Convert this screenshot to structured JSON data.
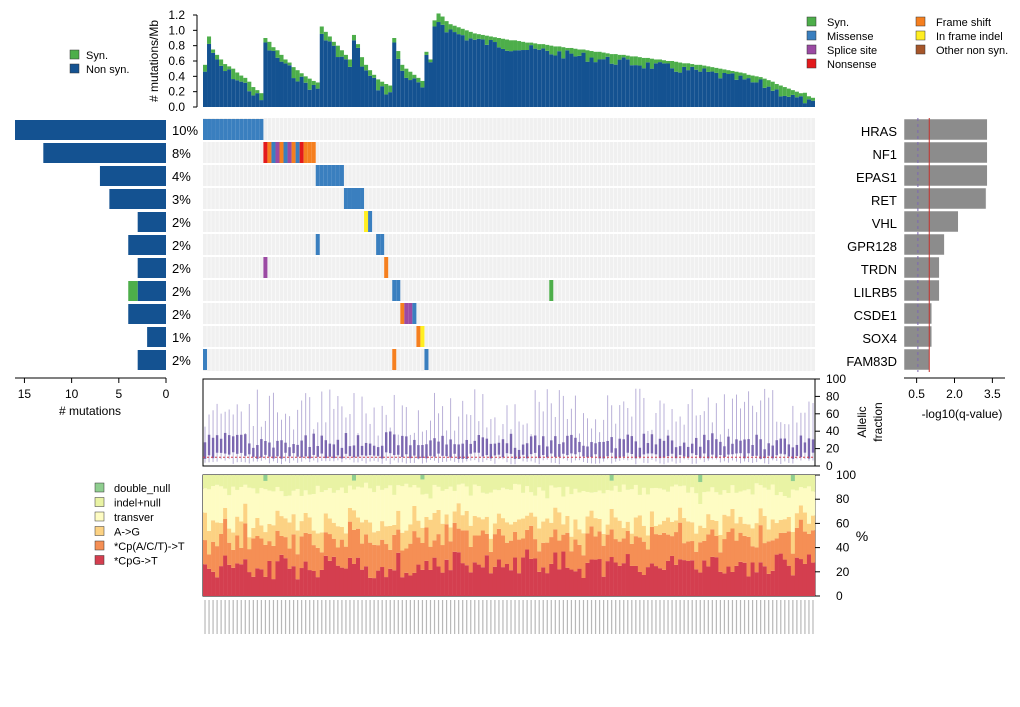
{
  "colors": {
    "syn": "#4dae4a",
    "non_syn": "#145291",
    "missense": "#3a7fbf",
    "splice_site": "#9b4aa3",
    "nonsense": "#e31a1c",
    "frame_shift": "#f57f1f",
    "in_frame_indel": "#ffee22",
    "other_non_syn": "#a6562a",
    "background_cell": "#f0f0f0",
    "qvalue_bar": "#8c8c8c",
    "allelic_line": "#7b67b0",
    "double_null": "#8fce8f",
    "indel_null": "#e9f3a4",
    "transver": "#fefcc3",
    "a_to_g": "#fcd283",
    "cpacg_t": "#f58f55",
    "cpg_t": "#d43e4f"
  },
  "chart_data": [
    {
      "id": "mutation-rate",
      "type": "bar",
      "ylabel": "# mutations/Mb",
      "ylim": [
        0,
        1.2
      ],
      "yticks": [
        "0.0",
        "0.2",
        "0.4",
        "0.6",
        "0.8",
        "1.0",
        "1.2"
      ],
      "samples": 152,
      "series": [
        {
          "name": "Syn.",
          "note": "green top segment per sample, ~0.03-0.15"
        },
        {
          "name": "Non syn.",
          "note": "blue lower segment per sample, ~0.1-1.0"
        }
      ],
      "total_profile": [
        0.55,
        0.92,
        0.75,
        0.68,
        0.62,
        0.56,
        0.53,
        0.5,
        0.45,
        0.41,
        0.38,
        0.33,
        0.26,
        0.22,
        0.18,
        0.9,
        0.85,
        0.78,
        0.74,
        0.68,
        0.62,
        0.58,
        0.52,
        0.48,
        0.44,
        0.4,
        0.37,
        0.34,
        0.32,
        1.05,
        0.98,
        0.92,
        0.85,
        0.8,
        0.74,
        0.68,
        0.62,
        0.94,
        0.82,
        0.65,
        0.55,
        0.48,
        0.42,
        0.36,
        0.33,
        0.3,
        0.28,
        0.9,
        0.73,
        0.55,
        0.5,
        0.46,
        0.42,
        0.38,
        0.34,
        0.72,
        0.62,
        1.13,
        1.22,
        1.18,
        1.12,
        1.08,
        1.06,
        1.04,
        1.02,
        1.0,
        0.98,
        0.96,
        0.95,
        0.94,
        0.93,
        0.92,
        0.91,
        0.9,
        0.89,
        0.88,
        0.87,
        0.87,
        0.86,
        0.85,
        0.84,
        0.84,
        0.83,
        0.82,
        0.82,
        0.81,
        0.8,
        0.79,
        0.79,
        0.78,
        0.77,
        0.77,
        0.76,
        0.75,
        0.75,
        0.74,
        0.73,
        0.72,
        0.72,
        0.71,
        0.7,
        0.69,
        0.69,
        0.68,
        0.68,
        0.67,
        0.66,
        0.66,
        0.65,
        0.64,
        0.64,
        0.63,
        0.62,
        0.62,
        0.61,
        0.6,
        0.6,
        0.59,
        0.58,
        0.57,
        0.57,
        0.56,
        0.55,
        0.55,
        0.54,
        0.53,
        0.52,
        0.51,
        0.5,
        0.49,
        0.48,
        0.47,
        0.46,
        0.45,
        0.44,
        0.42,
        0.41,
        0.4,
        0.39,
        0.37,
        0.35,
        0.33,
        0.3,
        0.28,
        0.26,
        0.24,
        0.22,
        0.2,
        0.18,
        0.16,
        0.14,
        0.12
      ],
      "legend": [
        "Syn.",
        "Non syn."
      ]
    },
    {
      "id": "oncoprint",
      "type": "heatmap",
      "genes": [
        "HRAS",
        "NF1",
        "EPAS1",
        "RET",
        "VHL",
        "GPR128",
        "TRDN",
        "LILRB5",
        "CSDE1",
        "SOX4",
        "FAM83D"
      ],
      "percentages": [
        "10%",
        "8%",
        "4%",
        "3%",
        "2%",
        "2%",
        "2%",
        "2%",
        "2%",
        "1%",
        "2%"
      ],
      "mutation_counts": {
        "non_syn": [
          16,
          13,
          7,
          6,
          3,
          4,
          3,
          3,
          4,
          2,
          3
        ],
        "syn": [
          0,
          0,
          0,
          0,
          0,
          0,
          0,
          1,
          0,
          0,
          0
        ]
      },
      "xlim_mutations": [
        0,
        16
      ],
      "xticks_mutations": [
        "15",
        "10",
        "5",
        "0"
      ],
      "xlabel_mutations": "# mutations",
      "cells": [
        {
          "gene": 0,
          "sample": 0,
          "type": "missense"
        },
        {
          "gene": 0,
          "sample": 1,
          "type": "missense"
        },
        {
          "gene": 0,
          "sample": 2,
          "type": "missense"
        },
        {
          "gene": 0,
          "sample": 3,
          "type": "missense"
        },
        {
          "gene": 0,
          "sample": 4,
          "type": "missense"
        },
        {
          "gene": 0,
          "sample": 5,
          "type": "missense"
        },
        {
          "gene": 0,
          "sample": 6,
          "type": "missense"
        },
        {
          "gene": 0,
          "sample": 7,
          "type": "missense"
        },
        {
          "gene": 0,
          "sample": 8,
          "type": "missense"
        },
        {
          "gene": 0,
          "sample": 9,
          "type": "missense"
        },
        {
          "gene": 0,
          "sample": 10,
          "type": "missense"
        },
        {
          "gene": 0,
          "sample": 11,
          "type": "missense"
        },
        {
          "gene": 0,
          "sample": 12,
          "type": "missense"
        },
        {
          "gene": 0,
          "sample": 13,
          "type": "missense"
        },
        {
          "gene": 0,
          "sample": 14,
          "type": "missense"
        },
        {
          "gene": 1,
          "sample": 15,
          "type": "nonsense"
        },
        {
          "gene": 1,
          "sample": 16,
          "type": "frame_shift"
        },
        {
          "gene": 1,
          "sample": 17,
          "type": "missense"
        },
        {
          "gene": 1,
          "sample": 18,
          "type": "splice_site"
        },
        {
          "gene": 1,
          "sample": 19,
          "type": "frame_shift"
        },
        {
          "gene": 1,
          "sample": 20,
          "type": "missense"
        },
        {
          "gene": 1,
          "sample": 21,
          "type": "splice_site"
        },
        {
          "gene": 1,
          "sample": 22,
          "type": "frame_shift"
        },
        {
          "gene": 1,
          "sample": 23,
          "type": "missense"
        },
        {
          "gene": 1,
          "sample": 24,
          "type": "nonsense"
        },
        {
          "gene": 1,
          "sample": 25,
          "type": "frame_shift"
        },
        {
          "gene": 1,
          "sample": 26,
          "type": "frame_shift"
        },
        {
          "gene": 1,
          "sample": 27,
          "type": "frame_shift"
        },
        {
          "gene": 2,
          "sample": 28,
          "type": "missense"
        },
        {
          "gene": 2,
          "sample": 29,
          "type": "missense"
        },
        {
          "gene": 2,
          "sample": 30,
          "type": "missense"
        },
        {
          "gene": 2,
          "sample": 31,
          "type": "missense"
        },
        {
          "gene": 2,
          "sample": 32,
          "type": "missense"
        },
        {
          "gene": 2,
          "sample": 33,
          "type": "missense"
        },
        {
          "gene": 2,
          "sample": 34,
          "type": "missense"
        },
        {
          "gene": 3,
          "sample": 35,
          "type": "missense"
        },
        {
          "gene": 3,
          "sample": 36,
          "type": "missense"
        },
        {
          "gene": 3,
          "sample": 37,
          "type": "missense"
        },
        {
          "gene": 3,
          "sample": 38,
          "type": "missense"
        },
        {
          "gene": 3,
          "sample": 39,
          "type": "missense"
        },
        {
          "gene": 4,
          "sample": 40,
          "type": "in_frame_indel"
        },
        {
          "gene": 4,
          "sample": 41,
          "type": "missense"
        },
        {
          "gene": 5,
          "sample": 28,
          "type": "missense"
        },
        {
          "gene": 5,
          "sample": 43,
          "type": "missense"
        },
        {
          "gene": 5,
          "sample": 44,
          "type": "missense"
        },
        {
          "gene": 6,
          "sample": 15,
          "type": "splice_site"
        },
        {
          "gene": 6,
          "sample": 45,
          "type": "frame_shift"
        },
        {
          "gene": 7,
          "sample": 47,
          "type": "missense"
        },
        {
          "gene": 7,
          "sample": 48,
          "type": "missense"
        },
        {
          "gene": 7,
          "sample": 86,
          "type": "syn"
        },
        {
          "gene": 8,
          "sample": 49,
          "type": "frame_shift"
        },
        {
          "gene": 8,
          "sample": 50,
          "type": "splice_site"
        },
        {
          "gene": 8,
          "sample": 51,
          "type": "splice_site"
        },
        {
          "gene": 8,
          "sample": 52,
          "type": "missense"
        },
        {
          "gene": 9,
          "sample": 53,
          "type": "frame_shift"
        },
        {
          "gene": 9,
          "sample": 54,
          "type": "in_frame_indel"
        },
        {
          "gene": 10,
          "sample": 0,
          "type": "missense"
        },
        {
          "gene": 10,
          "sample": 47,
          "type": "frame_shift"
        },
        {
          "gene": 10,
          "sample": 55,
          "type": "missense"
        }
      ],
      "legend": [
        "Syn.",
        "Missense",
        "Splice site",
        "Nonsense",
        "Frame shift",
        "In frame indel",
        "Other non syn."
      ]
    },
    {
      "id": "qvalue",
      "type": "bar",
      "xlabel": "-log10(q-value)",
      "xlim": [
        0,
        4
      ],
      "xticks": [
        "0.5",
        "2.0",
        "3.5"
      ],
      "values": [
        3.3,
        3.3,
        3.3,
        3.25,
        2.15,
        1.6,
        1.4,
        1.4,
        1.1,
        1.1,
        1.0
      ],
      "threshold_red": 1.0,
      "threshold_dashed": 0.55
    },
    {
      "id": "allelic-fraction",
      "type": "bar",
      "ylabel": "Allelic fraction",
      "ylim": [
        0,
        100
      ],
      "yticks": [
        "0",
        "20",
        "40",
        "60",
        "80",
        "100"
      ],
      "median_line": 10
    },
    {
      "id": "mutation-spectrum",
      "type": "bar",
      "ylabel": "%",
      "ylim": [
        0,
        100
      ],
      "yticks": [
        "0",
        "20",
        "40",
        "60",
        "80",
        "100"
      ],
      "categories": [
        "double_null",
        "indel+null",
        "transver",
        "A->G",
        "*Cp(A/C/T)->T",
        "*CpG->T"
      ],
      "mean_percent": [
        1,
        12,
        26,
        14,
        22,
        25
      ]
    }
  ]
}
